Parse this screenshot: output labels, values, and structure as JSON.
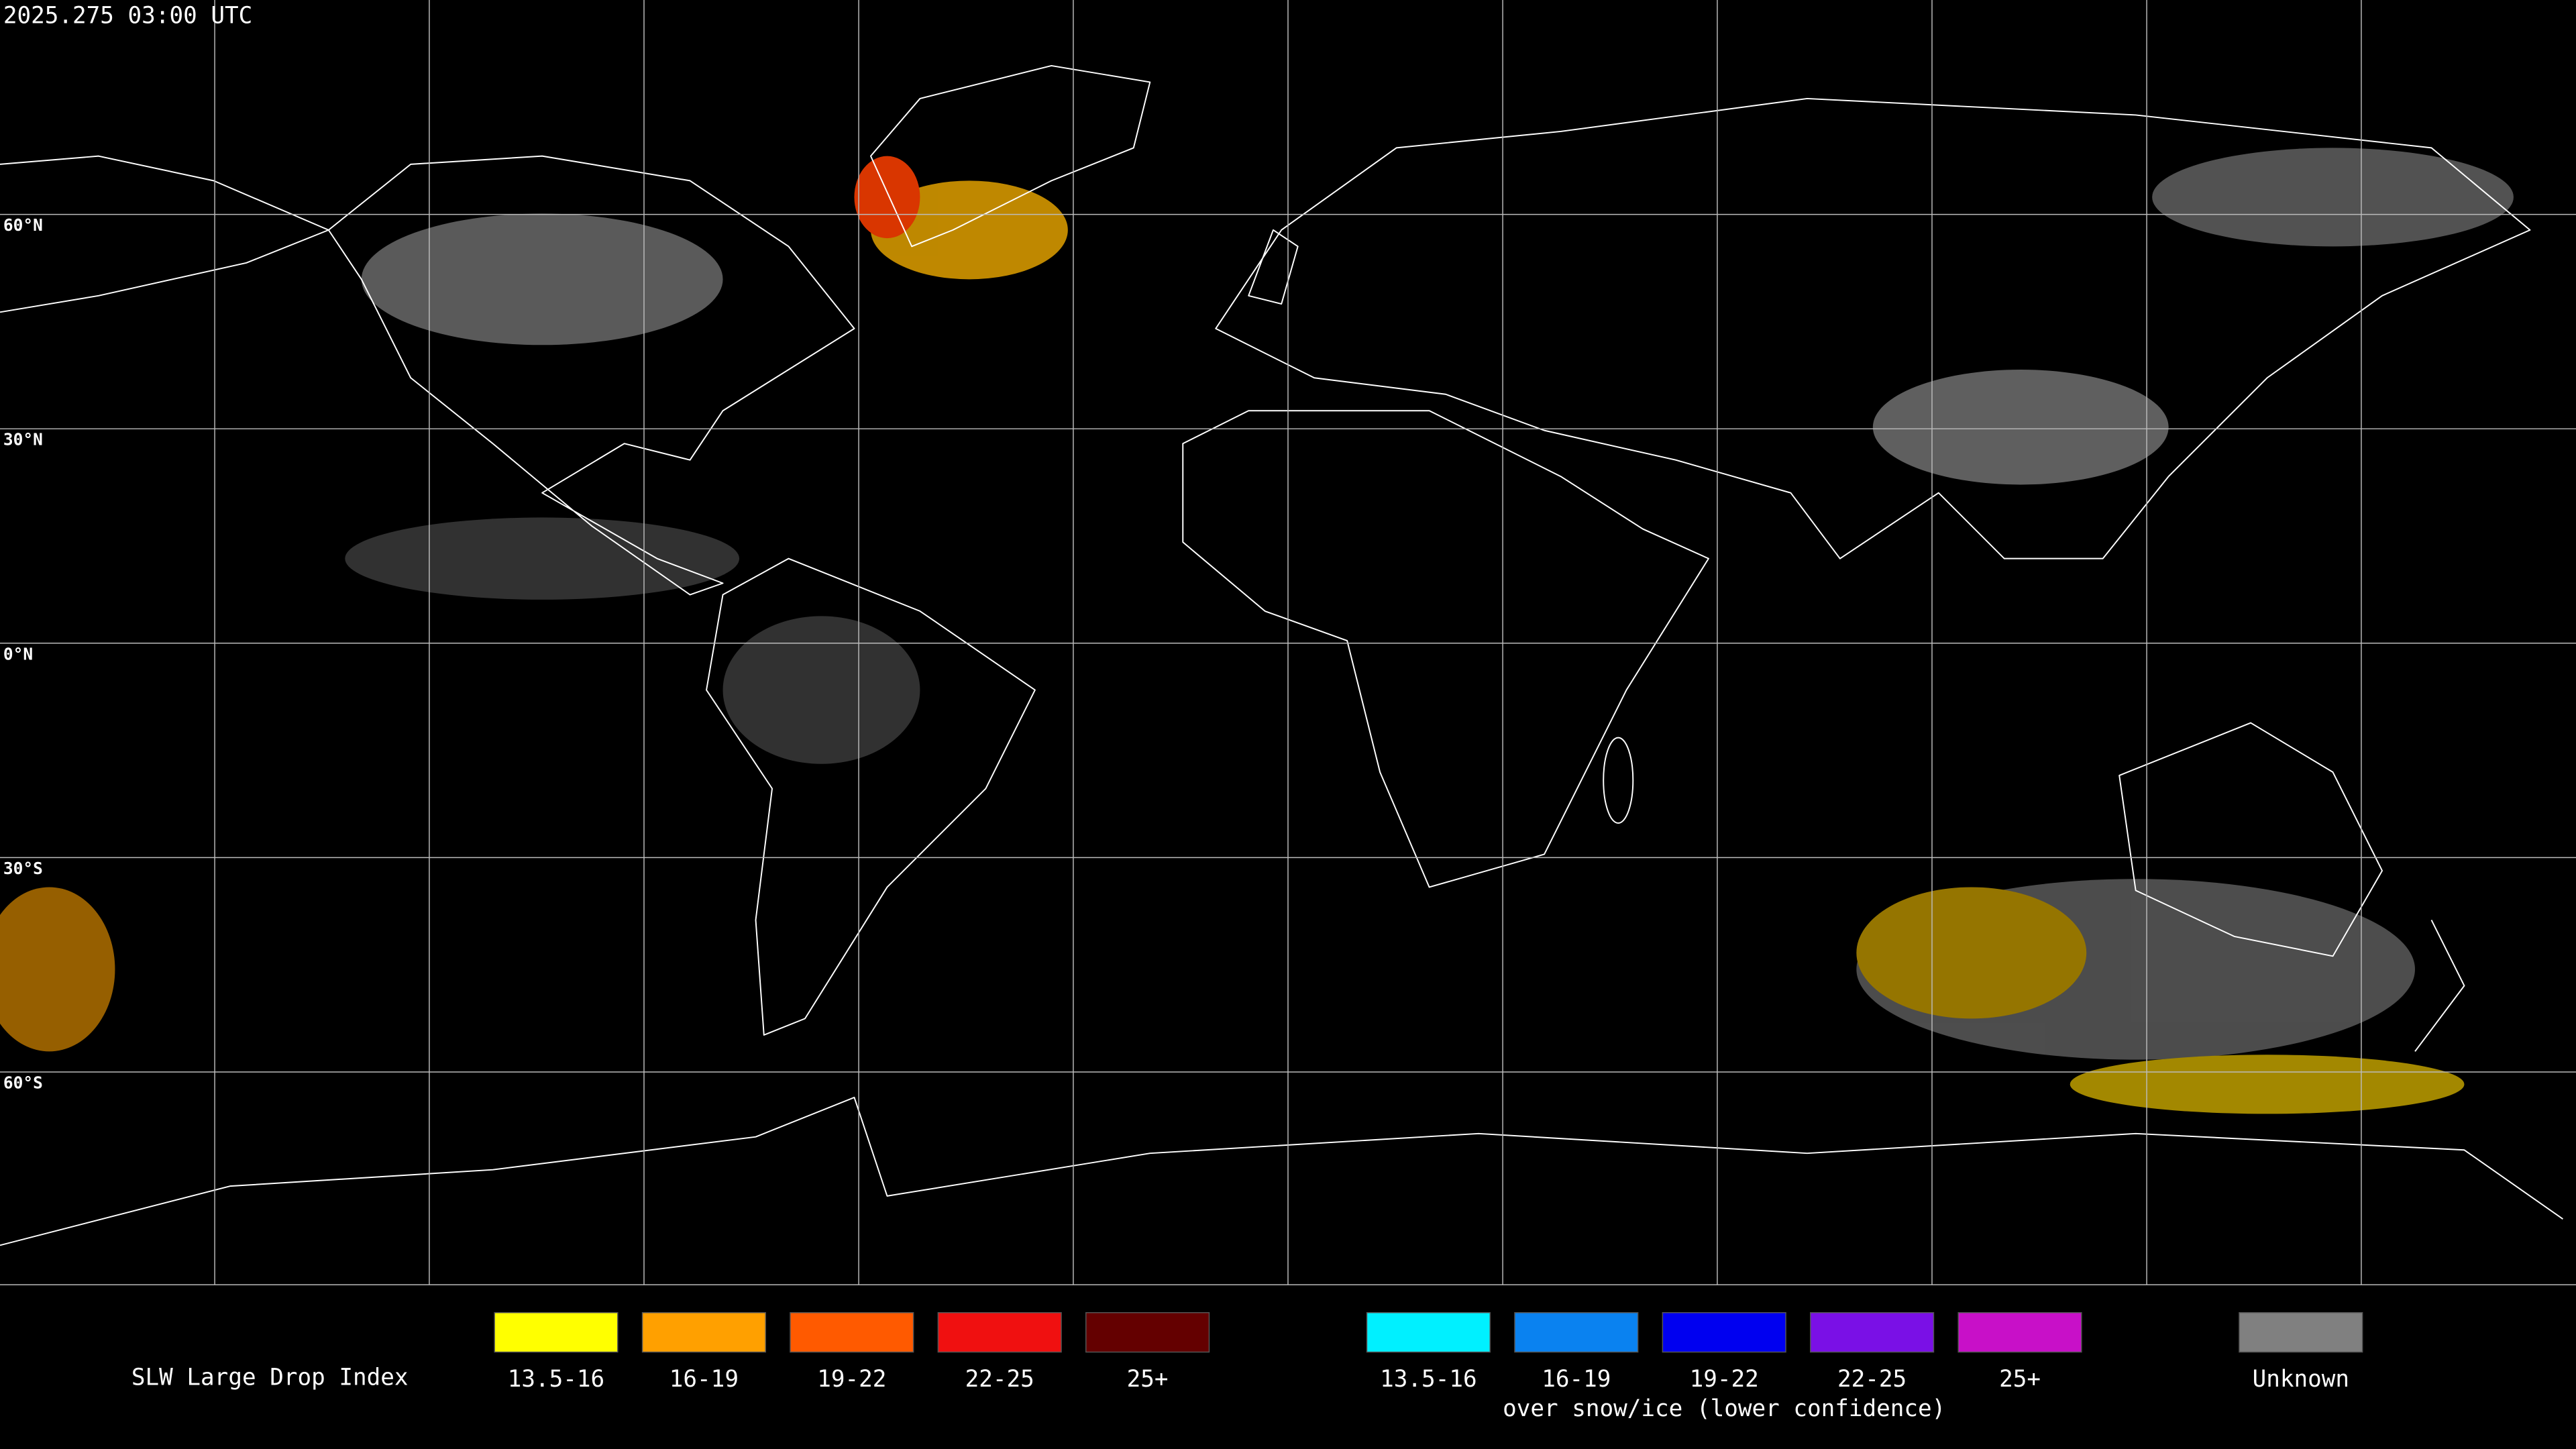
{
  "timestamp": "2025.275 03:00 UTC",
  "latitude_labels": [
    "60°N",
    "30°N",
    "0°N",
    "30°S",
    "60°S"
  ],
  "legend": {
    "title": "SLW Large Drop Index",
    "groups": [
      {
        "items": [
          {
            "label": "13.5-16",
            "color": "#ffff00"
          },
          {
            "label": "16-19",
            "color": "#ffa000"
          },
          {
            "label": "19-22",
            "color": "#ff5a00"
          },
          {
            "label": "22-25",
            "color": "#f01010"
          },
          {
            "label": "25+",
            "color": "#640000"
          }
        ]
      },
      {
        "items": [
          {
            "label": "13.5-16",
            "color": "#00f0ff"
          },
          {
            "label": "16-19",
            "color": "#0a82f0"
          },
          {
            "label": "19-22",
            "color": "#0000f0"
          },
          {
            "label": "22-25",
            "color": "#7a10e6"
          },
          {
            "label": "25+",
            "color": "#c810c8"
          }
        ],
        "caption": "over snow/ice (lower confidence)"
      },
      {
        "items": [
          {
            "label": "Unknown",
            "color": "#808080"
          }
        ]
      }
    ]
  }
}
